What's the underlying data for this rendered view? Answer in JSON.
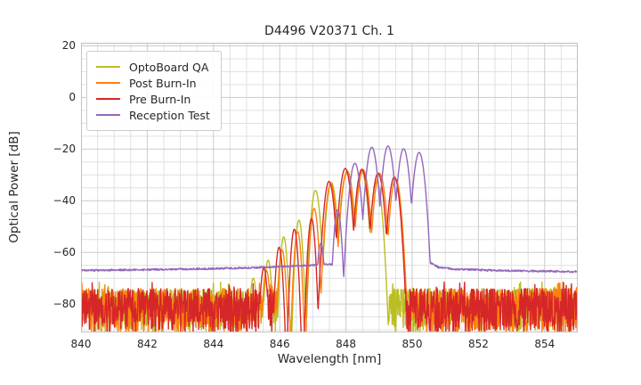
{
  "chart_data": {
    "type": "line",
    "title": "D4496 V20371 Ch. 1",
    "xlabel": "Wavelength [nm]",
    "ylabel": "Optical Power [dB]",
    "xlim": [
      840,
      855
    ],
    "ylim": [
      -91,
      21.2
    ],
    "xticks": [
      840,
      842,
      844,
      846,
      848,
      850,
      852,
      854
    ],
    "yticks": [
      20,
      0,
      -20,
      -40,
      -60,
      -80
    ],
    "x_minor_step_nm": 0.5,
    "y_minor_step_dB": 5,
    "grid": true,
    "legend_position": "upper-left",
    "mode_half_spacing_nm": 0.25,
    "series": [
      {
        "name": "OptoBoard QA",
        "color": "#bcbd22",
        "modes": [
          [
            845.2,
            -70
          ],
          [
            845.65,
            -63
          ],
          [
            846.12,
            -54
          ],
          [
            846.58,
            -47.5
          ],
          [
            847.08,
            -36
          ],
          [
            847.56,
            -33
          ],
          [
            848.02,
            -29.5
          ],
          [
            848.47,
            -28.5
          ],
          [
            848.93,
            -32.5
          ]
        ],
        "noise_regions": [
          [
            840,
            845.95
          ],
          [
            849.28,
            855
          ]
        ],
        "noise_top_dB": -74,
        "noise_depth_dB": 17.5,
        "seed": 7
      },
      {
        "name": "Post Burn-In",
        "color": "#ff7f0e",
        "modes": [
          [
            845.6,
            -67
          ],
          [
            846.07,
            -59
          ],
          [
            846.54,
            -52
          ],
          [
            847.04,
            -43
          ],
          [
            847.54,
            -33.5
          ],
          [
            848.04,
            -28.5
          ],
          [
            848.52,
            -28
          ],
          [
            849.02,
            -29.5
          ],
          [
            849.5,
            -31.5
          ]
        ],
        "noise_regions": [
          [
            840,
            845.92
          ],
          [
            849.7,
            855
          ]
        ],
        "noise_top_dB": -74,
        "noise_depth_dB": 17.5,
        "seed": 13
      },
      {
        "name": "Pre Burn-In",
        "color": "#d62728",
        "modes": [
          [
            845.52,
            -66
          ],
          [
            845.98,
            -58
          ],
          [
            846.44,
            -51
          ],
          [
            846.96,
            -47
          ],
          [
            847.49,
            -32.5
          ],
          [
            847.98,
            -27.5
          ],
          [
            848.48,
            -27.8
          ],
          [
            848.97,
            -29.3
          ],
          [
            849.46,
            -30.8
          ]
        ],
        "noise_regions": [
          [
            840,
            845.9
          ],
          [
            849.72,
            855
          ]
        ],
        "noise_top_dB": -74,
        "noise_depth_dB": 17.5,
        "seed": 21
      },
      {
        "name": "Reception Test",
        "color": "#9467bd",
        "modes": [
          [
            847.24,
            -56.5
          ],
          [
            847.75,
            -43.5
          ],
          [
            848.27,
            -25.5
          ],
          [
            848.78,
            -19.3
          ],
          [
            849.27,
            -18.8
          ],
          [
            849.74,
            -19.9
          ],
          [
            850.21,
            -21.3
          ]
        ],
        "floor_left": [
          [
            840,
            -67.0
          ],
          [
            842,
            -66.7
          ],
          [
            844,
            -66.3
          ],
          [
            845.5,
            -65.8
          ],
          [
            846.6,
            -65.2
          ],
          [
            847.9,
            -64.4
          ]
        ],
        "floor_right": [
          [
            850.42,
            -60
          ],
          [
            850.55,
            -64
          ],
          [
            850.8,
            -65.8
          ],
          [
            851.3,
            -66.5
          ],
          [
            852.5,
            -67.0
          ],
          [
            854,
            -67.3
          ],
          [
            855,
            -67.5
          ]
        ],
        "floor_ripple_dB": 0.35,
        "seed": 5
      }
    ]
  }
}
